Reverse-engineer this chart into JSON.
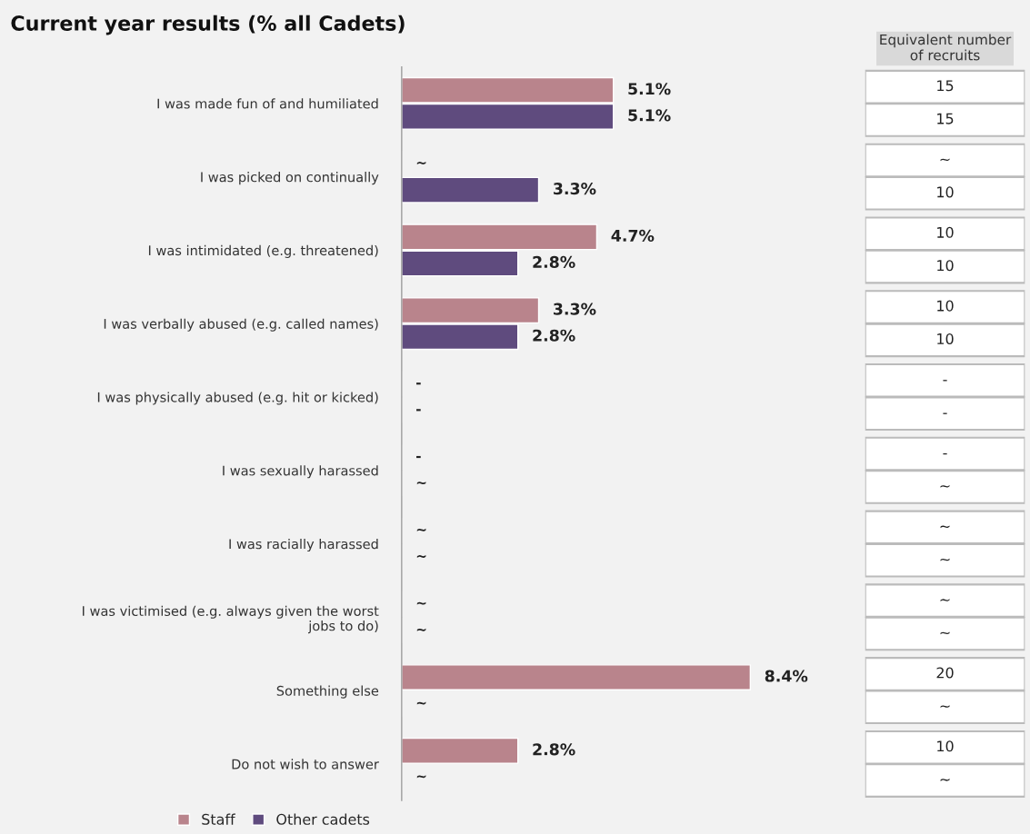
{
  "chart_data": [
    {
      "type": "bar",
      "title": "Current year results (% all Cadets)",
      "orientation": "horizontal",
      "grid": false,
      "legend": "bottom",
      "categories": [
        "I was made fun of and humiliated",
        "I was picked on continually",
        "I was intimidated (e.g. threatened)",
        "I was verbally abused (e.g. called names)",
        "I was physically abused (e.g. hit or kicked)",
        "I was sexually harassed",
        "I was racially harassed",
        "I was victimised (e.g. always given the worst\njobs to do)",
        "Something else",
        "Do not wish to answer"
      ],
      "series": [
        {
          "name": "Staff",
          "color": "#b9848c",
          "values": [
            5.1,
            null,
            4.7,
            3.3,
            null,
            null,
            null,
            null,
            8.4,
            2.8
          ],
          "value_labels": [
            "5.1%",
            "~",
            "4.7%",
            "3.3%",
            "-",
            "-",
            "~",
            "~",
            "8.4%",
            "2.8%"
          ]
        },
        {
          "name": "Other cadets",
          "color": "#5f4b7e",
          "values": [
            5.1,
            3.3,
            2.8,
            2.8,
            null,
            null,
            null,
            null,
            null,
            null
          ],
          "value_labels": [
            "5.1%",
            "3.3%",
            "2.8%",
            "2.8%",
            "-",
            "~",
            "~",
            "~",
            "~",
            "~"
          ]
        }
      ]
    },
    {
      "type": "other",
      "title": "Equivalent number\nof recruits",
      "annotations": [
        "15",
        "15",
        "~",
        "10",
        "10",
        "10",
        "10",
        "10",
        "-",
        "-",
        "-",
        "~",
        "~",
        "~",
        "~",
        "~",
        "20",
        "~",
        "10",
        "~"
      ]
    }
  ]
}
